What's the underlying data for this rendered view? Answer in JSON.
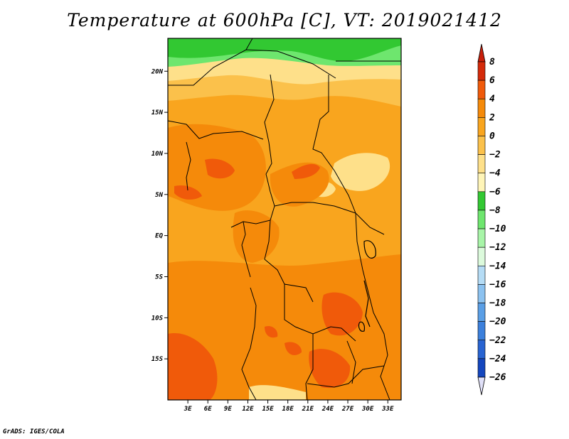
{
  "title": "Temperature at 600hPa [C], VT: 2019021412",
  "credit": "GrADS: IGES/COLA",
  "map": {
    "lon_range": [
      0,
      35
    ],
    "lat_range": [
      -20,
      24
    ],
    "lat_ticks": [
      {
        "value": 20,
        "label": "20N"
      },
      {
        "value": 15,
        "label": "15N"
      },
      {
        "value": 10,
        "label": "10N"
      },
      {
        "value": 5,
        "label": "5N"
      },
      {
        "value": 0,
        "label": "EQ"
      },
      {
        "value": -5,
        "label": "5S"
      },
      {
        "value": -10,
        "label": "10S"
      },
      {
        "value": -15,
        "label": "15S"
      }
    ],
    "lon_ticks": [
      {
        "value": 3,
        "label": "3E"
      },
      {
        "value": 6,
        "label": "6E"
      },
      {
        "value": 9,
        "label": "9E"
      },
      {
        "value": 12,
        "label": "12E"
      },
      {
        "value": 15,
        "label": "15E"
      },
      {
        "value": 18,
        "label": "18E"
      },
      {
        "value": 21,
        "label": "21E"
      },
      {
        "value": 24,
        "label": "24E"
      },
      {
        "value": 27,
        "label": "27E"
      },
      {
        "value": 30,
        "label": "30E"
      },
      {
        "value": 33,
        "label": "33E"
      }
    ]
  },
  "colorbar": {
    "labels": [
      "8",
      "6",
      "4",
      "2",
      "0",
      "−2",
      "−4",
      "−6",
      "−8",
      "−10",
      "−12",
      "−14",
      "−16",
      "−18",
      "−20",
      "−22",
      "−24",
      "−26"
    ],
    "colors": [
      "#d42a0a",
      "#f05a0a",
      "#f58a0a",
      "#f9a51e",
      "#fbc14b",
      "#fee08a",
      "#fff5b8",
      "#32c832",
      "#6ee66e",
      "#a8f5a8",
      "#dcfadc",
      "#b5dcf5",
      "#8cc2f0",
      "#5a9fe6",
      "#3c80dc",
      "#2864d2",
      "#1446be",
      "#081c82"
    ],
    "tip_top": "#c81e0a",
    "tip_bottom": "#e0e0f8",
    "map_fill_colors": {
      "warm_dark": "#f05a0a",
      "warm_mid": "#f58a0a",
      "warm": "#f9a51e",
      "mild": "#fbc14b",
      "pale": "#fee08a",
      "cream": "#fff5b8",
      "green_light": "#6ee66e",
      "green": "#32c832"
    }
  }
}
